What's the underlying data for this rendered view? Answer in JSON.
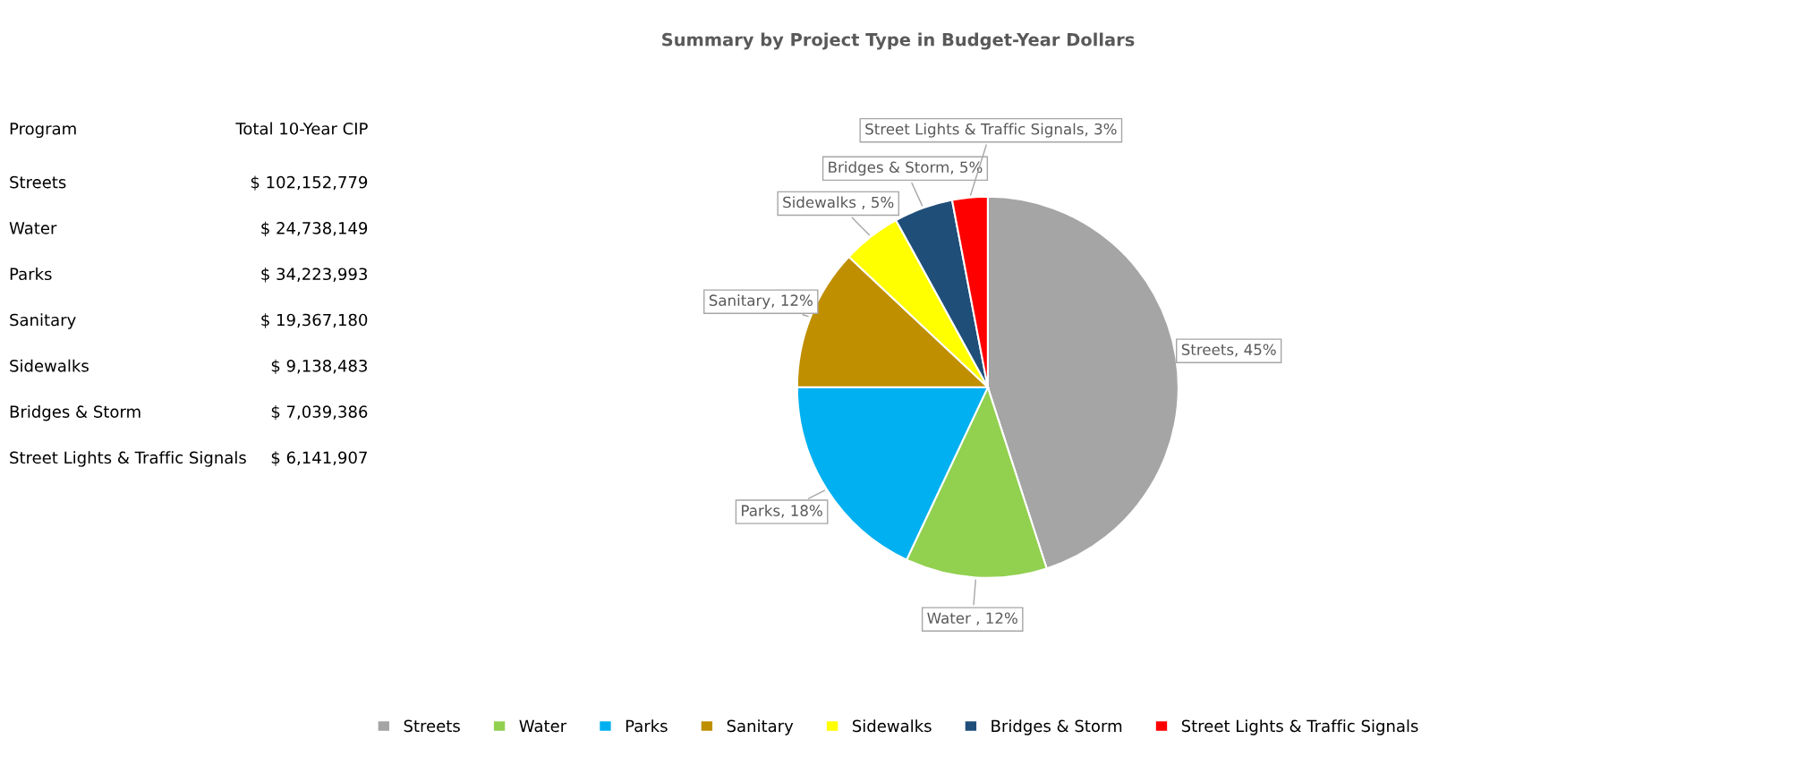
{
  "chart_data": {
    "type": "pie",
    "title": "Summary by Project Type in Budget-Year Dollars",
    "categories": [
      "Streets",
      "Water",
      "Parks",
      "Sanitary",
      "Sidewalks",
      "Bridges & Storm",
      "Street Lights & Traffic Signals"
    ],
    "values": [
      45,
      12,
      18,
      12,
      5,
      5,
      3
    ],
    "value_labels": [
      "Streets, 45%",
      "Water , 12%",
      "Parks, 18%",
      "Sanitary, 12%",
      "Sidewalks , 5%",
      "Bridges & Storm, 5%",
      "Street Lights & Traffic Signals, 3%"
    ],
    "colors": [
      "#a5a5a5",
      "#92d050",
      "#00b0f0",
      "#bf8f00",
      "#ffff00",
      "#1f4e79",
      "#ff0000"
    ],
    "legend": "bottom",
    "annotations": [
      "Program",
      "Total 10-Year CIP",
      "Streets",
      "$ 102,152,779",
      "Water",
      "$ 24,738,149",
      "Parks",
      "$ 34,223,993",
      "Sanitary",
      "$ 19,367,180",
      "Sidewalks",
      "$ 9,138,483",
      "Bridges & Storm",
      "$ 7,039,386",
      "Street Lights & Traffic Signals",
      "$ 6,141,907"
    ]
  }
}
